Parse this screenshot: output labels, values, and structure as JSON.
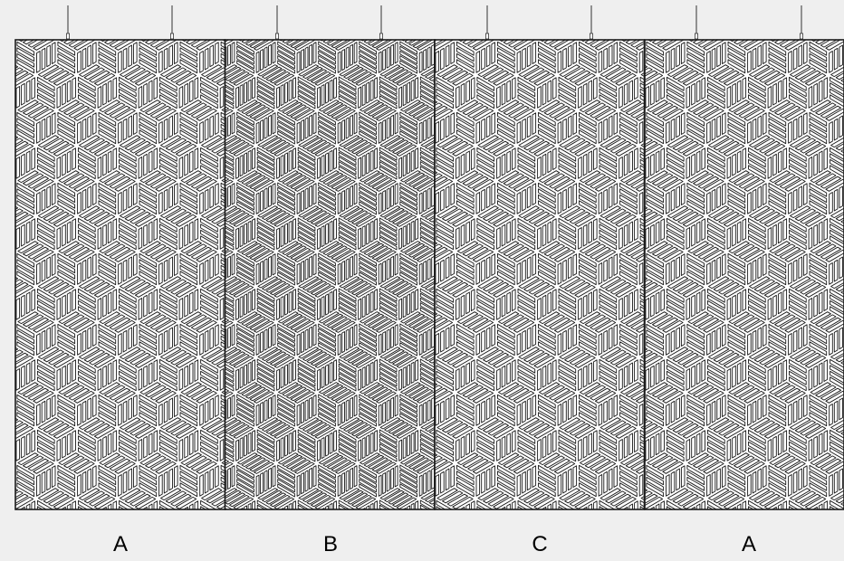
{
  "panels": [
    {
      "label": "A",
      "pattern": "A"
    },
    {
      "label": "B",
      "pattern": "B"
    },
    {
      "label": "C",
      "pattern": "C"
    },
    {
      "label": "A",
      "pattern": "A"
    }
  ],
  "colors": {
    "background": "#efefef",
    "panel_fill": "#ffffff",
    "line": "#1a1a1a",
    "cable": "#333333"
  }
}
